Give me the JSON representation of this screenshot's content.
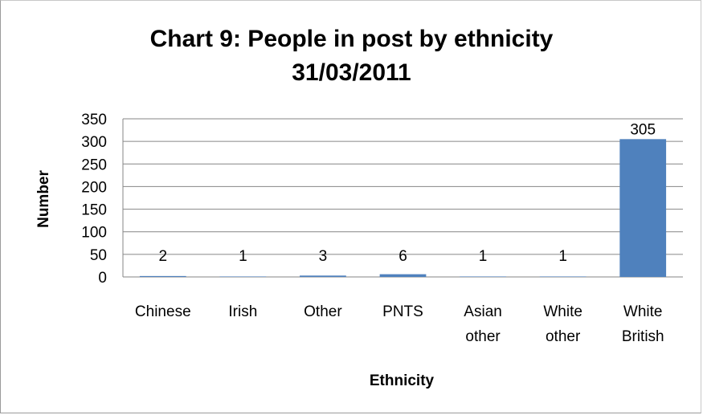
{
  "chart_data": {
    "type": "bar",
    "title_lines": [
      "Chart 9: People in post by ethnicity",
      "31/03/2011"
    ],
    "xlabel": "Ethnicity",
    "ylabel": "Number",
    "categories": [
      [
        "Chinese"
      ],
      [
        "Irish"
      ],
      [
        "Other"
      ],
      [
        "PNTS"
      ],
      [
        "Asian",
        "other"
      ],
      [
        "White",
        "other"
      ],
      [
        "White",
        "British"
      ]
    ],
    "values": [
      2,
      1,
      3,
      6,
      1,
      1,
      305
    ],
    "data_labels": [
      "2",
      "1",
      "3",
      "6",
      "1",
      "1",
      "305"
    ],
    "ylim": [
      0,
      350
    ],
    "yticks": [
      0,
      50,
      100,
      150,
      200,
      250,
      300,
      350
    ],
    "grid": true,
    "legend": "none",
    "colors": {
      "bar": "#4f81bd",
      "grid": "#868686",
      "axis": "#868686"
    }
  }
}
